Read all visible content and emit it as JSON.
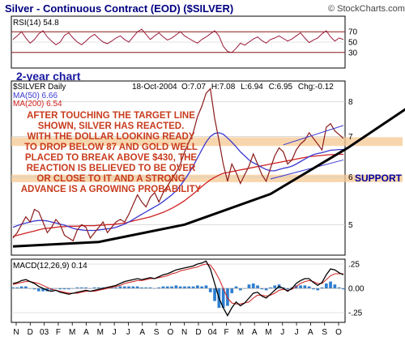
{
  "chart_data": {
    "type": "line",
    "header": {
      "title": "Silver - Continuous Contract (EOD) ($SILVER)",
      "copyright": "© StockCharts.com"
    },
    "rsi_panel": {
      "label": "RSI(14) 54.8",
      "yticks": [
        70,
        50,
        30
      ],
      "overlay_label": "2-year chart",
      "values": [
        55,
        62,
        70,
        58,
        48,
        55,
        66,
        72,
        60,
        52,
        45,
        50,
        63,
        68,
        58,
        50,
        45,
        52,
        60,
        65,
        57,
        50,
        47,
        52,
        58,
        62,
        55,
        50,
        60,
        70,
        75,
        65,
        55,
        62,
        68,
        60,
        54,
        58,
        64,
        70,
        62,
        57,
        52,
        48,
        55,
        60,
        66,
        72,
        62,
        42,
        32,
        30,
        38,
        48,
        44,
        50,
        56,
        60,
        53,
        48,
        55,
        58,
        62,
        57,
        52,
        56,
        62,
        68,
        58,
        49,
        54,
        58,
        66,
        72,
        60,
        52,
        58,
        55
      ]
    },
    "price_panel": {
      "symbol_label": "$SILVER Daily",
      "date_label": "18-Oct-2004",
      "ohlc": {
        "open": "O:7.07",
        "high": "H:7.08",
        "low": "L:6.94",
        "close": "C:6.95",
        "change": "Chg:-0.12"
      },
      "ma_labels": [
        {
          "label": "MA(50) 6.66",
          "color": "#3a3ad0"
        },
        {
          "label": "MA(200) 6.54",
          "color": "#d02020"
        }
      ],
      "ylim": [
        4.45,
        8.65
      ],
      "log_scale": true,
      "yticks": [
        8,
        7,
        6,
        5
      ],
      "close": [
        4.75,
        4.85,
        5.0,
        5.15,
        5.05,
        5.3,
        5.25,
        5.05,
        4.85,
        4.95,
        5.1,
        5.0,
        4.8,
        4.75,
        4.7,
        4.9,
        5.0,
        4.95,
        4.75,
        4.85,
        4.95,
        5.05,
        4.85,
        4.95,
        5.05,
        5.1,
        5.05,
        5.2,
        5.4,
        5.6,
        5.45,
        5.35,
        5.55,
        5.65,
        5.45,
        5.65,
        5.8,
        5.95,
        6.1,
        6.3,
        6.6,
        6.85,
        7.1,
        7.55,
        7.85,
        8.25,
        8.4,
        7.5,
        6.9,
        6.3,
        5.9,
        6.3,
        6.1,
        5.85,
        6.05,
        6.25,
        6.55,
        6.3,
        6.05,
        5.9,
        6.2,
        6.5,
        6.7,
        6.6,
        6.3,
        6.4,
        6.65,
        6.8,
        6.9,
        7.1,
        6.95,
        6.8,
        6.65,
        7.25,
        7.35,
        7.15,
        7.05,
        6.95
      ],
      "ma50": [
        4.95,
        4.98,
        5.01,
        5.03,
        5.05,
        5.07,
        5.08,
        5.08,
        5.07,
        5.05,
        5.03,
        5.01,
        4.99,
        4.96,
        4.93,
        4.91,
        4.9,
        4.89,
        4.89,
        4.89,
        4.9,
        4.91,
        4.92,
        4.93,
        4.95,
        4.98,
        5.01,
        5.05,
        5.1,
        5.15,
        5.2,
        5.25,
        5.3,
        5.35,
        5.4,
        5.46,
        5.53,
        5.6,
        5.69,
        5.8,
        5.93,
        6.08,
        6.25,
        6.45,
        6.65,
        6.85,
        7.0,
        7.08,
        7.1,
        7.06,
        6.96,
        6.85,
        6.73,
        6.6,
        6.5,
        6.4,
        6.33,
        6.28,
        6.22,
        6.17,
        6.14,
        6.14,
        6.17,
        6.2,
        6.22,
        6.25,
        6.3,
        6.36,
        6.42,
        6.48,
        6.53,
        6.56,
        6.58,
        6.61,
        6.64,
        6.65,
        6.66,
        6.66
      ],
      "ma200": [
        4.78,
        4.8,
        4.82,
        4.84,
        4.86,
        4.88,
        4.9,
        4.92,
        4.93,
        4.94,
        4.95,
        4.96,
        4.96,
        4.97,
        4.97,
        4.97,
        4.98,
        4.98,
        4.98,
        4.98,
        4.99,
        4.99,
        5.0,
        5.0,
        5.01,
        5.02,
        5.03,
        5.05,
        5.07,
        5.09,
        5.11,
        5.13,
        5.15,
        5.18,
        5.21,
        5.24,
        5.28,
        5.32,
        5.37,
        5.42,
        5.48,
        5.55,
        5.62,
        5.7,
        5.78,
        5.86,
        5.93,
        5.99,
        6.04,
        6.08,
        6.1,
        6.12,
        6.14,
        6.16,
        6.18,
        6.2,
        6.22,
        6.24,
        6.26,
        6.28,
        6.3,
        6.32,
        6.34,
        6.36,
        6.38,
        6.4,
        6.42,
        6.44,
        6.46,
        6.48,
        6.49,
        6.5,
        6.51,
        6.52,
        6.53,
        6.53,
        6.54,
        6.54
      ],
      "annotation": [
        "AFTER TOUCHING THE TARGET LINE",
        "SHOWN, SILVER HAS REACTED.",
        "WITH THE DOLLAR LOOKING READY",
        "TO DROP BELOW 87 AND GOLD WELL",
        "PLACED TO BREAK ABOVE $430, THE",
        "REACTION IS BELIEVED TO BE OVER",
        "OR CLOSE TO IT AND A STRONG",
        "ADVANCE IS A GROWING PROBABILITY"
      ],
      "support_label": "SUPPORT",
      "zones": [
        {
          "name": "upper-zone",
          "from": 6.75,
          "to": 6.98
        },
        {
          "name": "support-zone",
          "from": 5.88,
          "to": 6.05
        }
      ],
      "trendline_points": [
        [
          0,
          4.6
        ],
        [
          20,
          4.68
        ],
        [
          40,
          5.0
        ],
        [
          60,
          5.62
        ],
        [
          78,
          6.7
        ]
      ],
      "trendline_extension": [
        [
          78,
          6.7
        ],
        [
          93,
          7.9
        ]
      ],
      "channel_upper": [
        [
          63,
          6.78
        ],
        [
          77,
          7.3
        ]
      ],
      "channel_lower": [
        [
          60,
          5.95
        ],
        [
          77,
          6.4
        ]
      ]
    },
    "macd_panel": {
      "label": "MACD(12,26,9) 0.14",
      "ylim": [
        -0.35,
        0.3
      ],
      "yticks": [
        {
          "v": 0.25,
          "label": ".25"
        },
        {
          "v": 0.0,
          "label": "0.00"
        },
        {
          "v": -0.25,
          "label": "-.25"
        }
      ],
      "macd": [
        0.05,
        0.06,
        0.08,
        0.09,
        0.07,
        0.05,
        0.02,
        0.0,
        -0.02,
        -0.03,
        -0.02,
        -0.04,
        -0.05,
        -0.06,
        -0.05,
        -0.04,
        -0.03,
        -0.02,
        -0.03,
        -0.02,
        -0.01,
        0.0,
        0.01,
        0.02,
        0.03,
        0.05,
        0.07,
        0.08,
        0.09,
        0.1,
        0.09,
        0.1,
        0.11,
        0.1,
        0.12,
        0.14,
        0.15,
        0.17,
        0.19,
        0.2,
        0.21,
        0.22,
        0.23,
        0.25,
        0.26,
        0.28,
        0.2,
        0.05,
        -0.1,
        -0.2,
        -0.28,
        -0.2,
        -0.14,
        -0.18,
        -0.15,
        -0.1,
        -0.05,
        -0.04,
        -0.08,
        -0.1,
        -0.06,
        -0.02,
        0.02,
        0.0,
        -0.03,
        0.0,
        0.05,
        0.08,
        0.1,
        0.1,
        0.06,
        0.03,
        0.06,
        0.14,
        0.2,
        0.19,
        0.16,
        0.14
      ],
      "signal": [
        0.04,
        0.05,
        0.06,
        0.07,
        0.07,
        0.06,
        0.05,
        0.03,
        0.01,
        -0.01,
        -0.02,
        -0.03,
        -0.04,
        -0.05,
        -0.05,
        -0.05,
        -0.04,
        -0.03,
        -0.03,
        -0.03,
        -0.02,
        -0.01,
        0.0,
        0.01,
        0.02,
        0.03,
        0.05,
        0.06,
        0.07,
        0.08,
        0.08,
        0.09,
        0.1,
        0.1,
        0.11,
        0.12,
        0.13,
        0.15,
        0.16,
        0.18,
        0.19,
        0.2,
        0.21,
        0.22,
        0.24,
        0.25,
        0.24,
        0.18,
        0.1,
        0.0,
        -0.1,
        -0.15,
        -0.16,
        -0.16,
        -0.15,
        -0.14,
        -0.1,
        -0.07,
        -0.07,
        -0.08,
        -0.07,
        -0.05,
        -0.02,
        -0.01,
        -0.02,
        -0.01,
        0.02,
        0.05,
        0.07,
        0.08,
        0.07,
        0.05,
        0.05,
        0.09,
        0.13,
        0.15,
        0.15,
        0.15
      ]
    },
    "x_axis": {
      "labels": [
        "N",
        "D",
        "03",
        "F",
        "M",
        "A",
        "M",
        "J",
        "J",
        "A",
        "S",
        "O",
        "N",
        "D",
        "04",
        "F",
        "M",
        "A",
        "M",
        "J",
        "J",
        "A",
        "S",
        "O"
      ]
    },
    "colors": {
      "title": "#000080",
      "border": "#000000",
      "rsi_line": "#9b1b3a",
      "rsi_bands": "#8b1a1a",
      "price_line": "#8b1a1a",
      "ma50": "#3a3ad0",
      "ma200": "#d02020",
      "trendline": "#000000",
      "annotation_text": "#c83c1e",
      "zone_fill": "#f5c891",
      "support_label": "#0000a0",
      "label_blue": "#1a1aa0",
      "macd_line": "#000000",
      "signal_line": "#d02020",
      "histogram": "#2e7fd0",
      "grid": "#c8c8c8"
    }
  }
}
